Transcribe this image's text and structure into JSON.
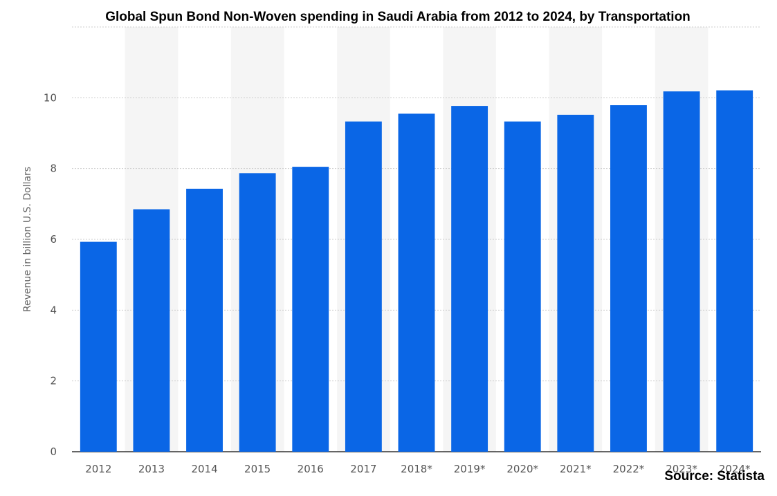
{
  "chart_data": {
    "type": "bar",
    "title": "Global Spun Bond Non-Woven spending in Saudi Arabia from 2012 to 2024, by Transportation",
    "xlabel": "",
    "ylabel": "Revenue in billion U.S. Dollars",
    "categories": [
      "2012",
      "2013",
      "2014",
      "2015",
      "2016",
      "2017",
      "2018*",
      "2019*",
      "2020*",
      "2021*",
      "2022*",
      "2023*",
      "2024*"
    ],
    "values": [
      5.93,
      6.85,
      7.43,
      7.87,
      8.05,
      9.33,
      9.55,
      9.77,
      9.33,
      9.52,
      9.79,
      10.18,
      10.21
    ],
    "ylim": [
      0,
      12
    ],
    "yticks": [
      0,
      2,
      4,
      6,
      8,
      10
    ],
    "grid": true,
    "bar_color": "#0a66e6",
    "band_color": "#f5f5f5",
    "grid_color": "#cccccc"
  },
  "source": "Source: Statista"
}
